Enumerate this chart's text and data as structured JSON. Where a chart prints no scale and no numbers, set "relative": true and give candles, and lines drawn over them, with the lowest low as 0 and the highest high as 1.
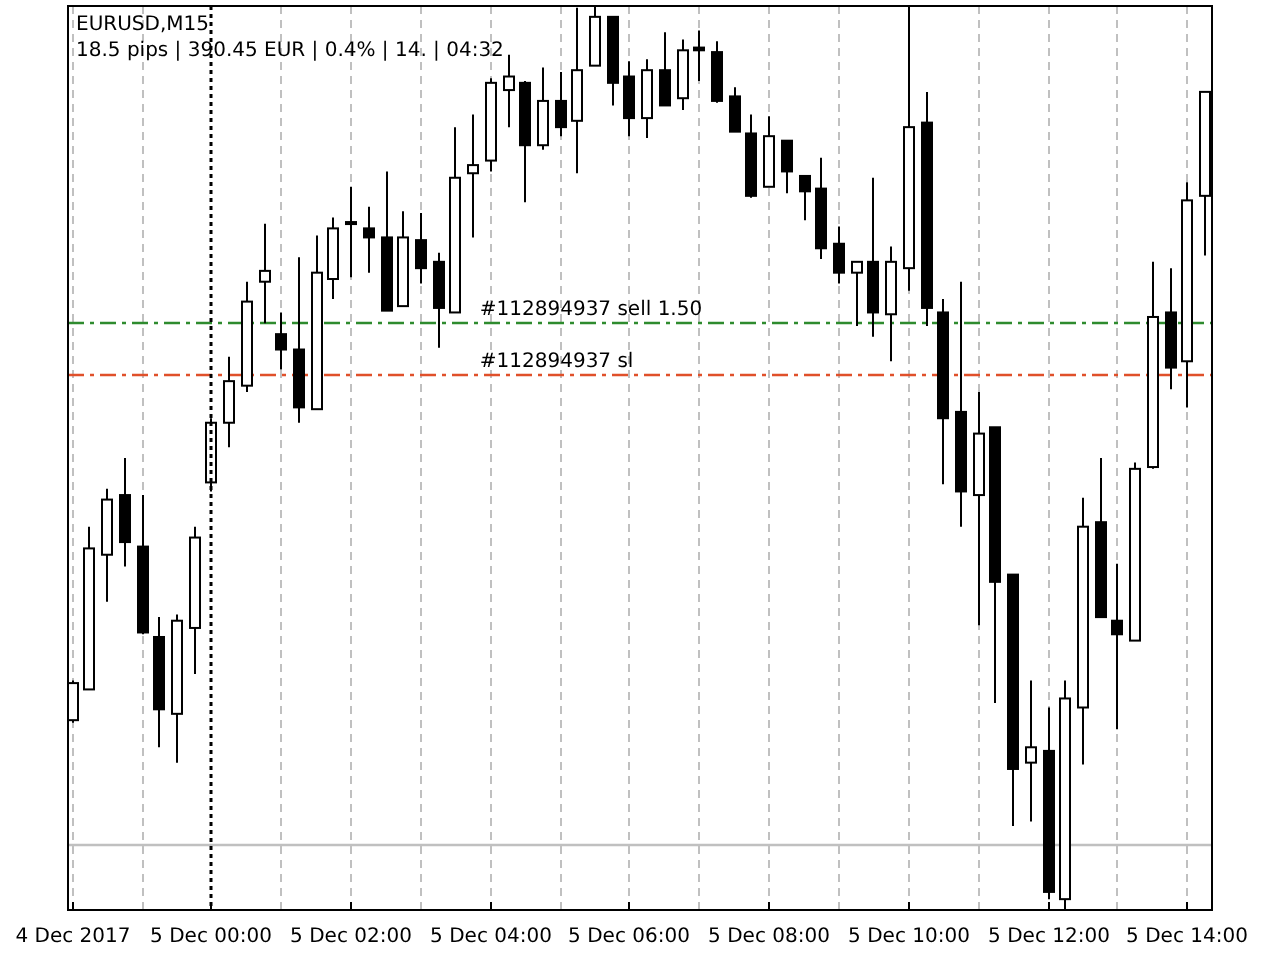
{
  "chart_data": {
    "type": "candlestick",
    "title": "EURUSD,M15",
    "subtitle": "18.5 pips | 390.45 EUR | 0.4% | 14. | 04:32",
    "relative": true,
    "grid": true,
    "xlim": [
      "2017-12-04T21:57",
      "2017-12-05T14:22"
    ],
    "xticks": [
      {
        "value": "2017-12-04T22:00",
        "label": "4 Dec 2017"
      },
      {
        "value": "2017-12-04T23:00",
        "label": null
      },
      {
        "value": "2017-12-05T00:00",
        "label": "5 Dec 00:00"
      },
      {
        "value": "2017-12-05T01:00",
        "label": null
      },
      {
        "value": "2017-12-05T02:00",
        "label": "5 Dec 02:00"
      },
      {
        "value": "2017-12-05T03:00",
        "label": null
      },
      {
        "value": "2017-12-05T04:00",
        "label": "5 Dec 04:00"
      },
      {
        "value": "2017-12-05T05:00",
        "label": null
      },
      {
        "value": "2017-12-05T06:00",
        "label": "5 Dec 06:00"
      },
      {
        "value": "2017-12-05T07:00",
        "label": null
      },
      {
        "value": "2017-12-05T08:00",
        "label": "5 Dec 08:00"
      },
      {
        "value": "2017-12-05T09:00",
        "label": null
      },
      {
        "value": "2017-12-05T10:00",
        "label": "5 Dec 10:00"
      },
      {
        "value": "2017-12-05T11:00",
        "label": null
      },
      {
        "value": "2017-12-05T12:00",
        "label": "5 Dec 12:00"
      },
      {
        "value": "2017-12-05T13:00",
        "label": null
      },
      {
        "value": "2017-12-05T14:00",
        "label": "5 Dec 14:00"
      }
    ],
    "ref_lines": [
      {
        "axis": "y",
        "value": 0.651,
        "label": "#112894937 sell 1.50",
        "color": "#2e8b2e",
        "line_style": "dashed"
      },
      {
        "axis": "y",
        "value": 0.593,
        "label": "#112894937 sl",
        "color": "#e0502a",
        "line_style": "dashed"
      },
      {
        "axis": "y",
        "value": 0.073,
        "color": "#c0c0c0",
        "line_style": "solid"
      },
      {
        "axis": "x",
        "value": "2017-12-05T00:00",
        "color": "#000000",
        "line_style": "dotted"
      }
    ],
    "x": [
      "2017-12-04T22:00",
      "2017-12-04T22:15",
      "2017-12-04T22:30",
      "2017-12-04T22:45",
      "2017-12-04T23:00",
      "2017-12-04T23:15",
      "2017-12-04T23:30",
      "2017-12-04T23:45",
      "2017-12-05T00:00",
      "2017-12-05T00:15",
      "2017-12-05T00:30",
      "2017-12-05T00:45",
      "2017-12-05T01:00",
      "2017-12-05T01:15",
      "2017-12-05T01:30",
      "2017-12-05T01:45",
      "2017-12-05T02:00",
      "2017-12-05T02:15",
      "2017-12-05T02:30",
      "2017-12-05T02:45",
      "2017-12-05T03:00",
      "2017-12-05T03:15",
      "2017-12-05T03:30",
      "2017-12-05T03:45",
      "2017-12-05T04:00",
      "2017-12-05T04:15",
      "2017-12-05T04:30",
      "2017-12-05T04:45",
      "2017-12-05T05:00",
      "2017-12-05T05:15",
      "2017-12-05T05:30",
      "2017-12-05T05:45",
      "2017-12-05T06:00",
      "2017-12-05T06:15",
      "2017-12-05T06:30",
      "2017-12-05T06:45",
      "2017-12-05T07:00",
      "2017-12-05T07:15",
      "2017-12-05T07:30",
      "2017-12-05T07:45",
      "2017-12-05T08:00",
      "2017-12-05T08:15",
      "2017-12-05T08:30",
      "2017-12-05T08:45",
      "2017-12-05T09:00",
      "2017-12-05T09:15",
      "2017-12-05T09:30",
      "2017-12-05T09:45",
      "2017-12-05T10:00",
      "2017-12-05T10:15",
      "2017-12-05T10:30",
      "2017-12-05T10:45",
      "2017-12-05T11:00",
      "2017-12-05T11:15",
      "2017-12-05T11:30",
      "2017-12-05T11:45",
      "2017-12-05T12:00",
      "2017-12-05T12:15",
      "2017-12-05T12:30",
      "2017-12-05T12:45",
      "2017-12-05T13:00",
      "2017-12-05T13:15",
      "2017-12-05T13:30",
      "2017-12-05T13:45",
      "2017-12-05T14:00",
      "2017-12-05T14:15"
    ],
    "ohlc": [
      [
        0.21,
        0.254,
        0.207,
        0.251
      ],
      [
        0.244,
        0.424,
        0.244,
        0.4
      ],
      [
        0.393,
        0.466,
        0.341,
        0.454
      ],
      [
        0.459,
        0.5,
        0.38,
        0.407
      ],
      [
        0.402,
        0.459,
        0.305,
        0.307
      ],
      [
        0.302,
        0.324,
        0.18,
        0.222
      ],
      [
        0.217,
        0.327,
        0.163,
        0.32
      ],
      [
        0.312,
        0.424,
        0.261,
        0.412
      ],
      [
        0.473,
        0.544,
        0.463,
        0.539
      ],
      [
        0.539,
        0.612,
        0.512,
        0.585
      ],
      [
        0.58,
        0.695,
        0.573,
        0.673
      ],
      [
        0.695,
        0.759,
        0.649,
        0.707
      ],
      [
        0.637,
        0.661,
        0.598,
        0.62
      ],
      [
        0.62,
        0.722,
        0.539,
        0.556
      ],
      [
        0.554,
        0.746,
        0.554,
        0.705
      ],
      [
        0.698,
        0.766,
        0.676,
        0.754
      ],
      [
        0.759,
        0.8,
        0.7,
        0.761
      ],
      [
        0.754,
        0.778,
        0.705,
        0.744
      ],
      [
        0.744,
        0.817,
        0.663,
        0.663
      ],
      [
        0.668,
        0.773,
        0.668,
        0.744
      ],
      [
        0.741,
        0.771,
        0.693,
        0.71
      ],
      [
        0.717,
        0.727,
        0.622,
        0.666
      ],
      [
        0.661,
        0.866,
        0.661,
        0.81
      ],
      [
        0.815,
        0.88,
        0.744,
        0.824
      ],
      [
        0.829,
        0.92,
        0.817,
        0.915
      ],
      [
        0.907,
        0.946,
        0.866,
        0.922
      ],
      [
        0.915,
        0.917,
        0.783,
        0.846
      ],
      [
        0.846,
        0.932,
        0.841,
        0.895
      ],
      [
        0.895,
        0.927,
        0.856,
        0.866
      ],
      [
        0.873,
        0.998,
        0.815,
        0.929
      ],
      [
        0.934,
        1.0,
        0.934,
        0.988
      ],
      [
        0.988,
        0.988,
        0.89,
        0.915
      ],
      [
        0.922,
        0.939,
        0.856,
        0.876
      ],
      [
        0.876,
        0.941,
        0.854,
        0.929
      ],
      [
        0.929,
        0.971,
        0.89,
        0.89
      ],
      [
        0.898,
        0.963,
        0.885,
        0.951
      ],
      [
        0.954,
        0.973,
        0.917,
        0.951
      ],
      [
        0.949,
        0.961,
        0.893,
        0.895
      ],
      [
        0.9,
        0.91,
        0.861,
        0.861
      ],
      [
        0.859,
        0.88,
        0.788,
        0.79
      ],
      [
        0.8,
        0.878,
        0.8,
        0.856
      ],
      [
        0.851,
        0.851,
        0.793,
        0.817
      ],
      [
        0.812,
        0.812,
        0.763,
        0.795
      ],
      [
        0.798,
        0.832,
        0.72,
        0.732
      ],
      [
        0.737,
        0.756,
        0.693,
        0.705
      ],
      [
        0.705,
        0.717,
        0.646,
        0.717
      ],
      [
        0.717,
        0.81,
        0.634,
        0.661
      ],
      [
        0.659,
        0.734,
        0.607,
        0.717
      ],
      [
        0.71,
        1.0,
        0.685,
        0.866
      ],
      [
        0.871,
        0.905,
        0.646,
        0.666
      ],
      [
        0.661,
        0.676,
        0.471,
        0.544
      ],
      [
        0.551,
        0.695,
        0.424,
        0.463
      ],
      [
        0.459,
        0.573,
        0.315,
        0.527
      ],
      [
        0.534,
        0.534,
        0.229,
        0.363
      ],
      [
        0.371,
        0.371,
        0.093,
        0.156
      ],
      [
        0.163,
        0.254,
        0.098,
        0.18
      ],
      [
        0.176,
        0.224,
        0.012,
        0.02
      ],
      [
        0.012,
        0.254,
        0.0,
        0.234
      ],
      [
        0.224,
        0.456,
        0.161,
        0.424
      ],
      [
        0.429,
        0.5,
        0.324,
        0.324
      ],
      [
        0.32,
        0.383,
        0.2,
        0.305
      ],
      [
        0.298,
        0.495,
        0.298,
        0.488
      ],
      [
        0.49,
        0.717,
        0.488,
        0.656
      ],
      [
        0.661,
        0.71,
        0.576,
        0.6
      ],
      [
        0.607,
        0.805,
        0.556,
        0.785
      ],
      [
        0.79,
        0.905,
        0.724,
        0.905
      ]
    ]
  }
}
